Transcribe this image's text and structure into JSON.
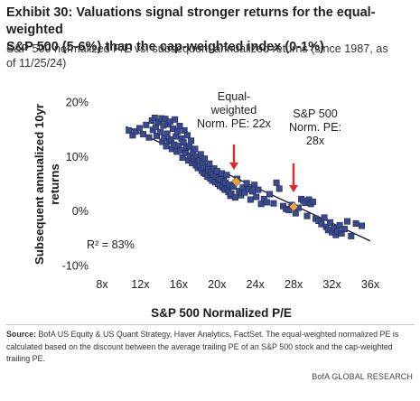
{
  "header": {
    "title_line1": "Exhibit 30: Valuations signal stronger returns for the equal-weighted",
    "title_line2": "S&P 500 (5-6%) than the cap-weighted index (0-1%)",
    "subtitle_line1": "S&P 500 normalized P/E vs. subsequent annualized returns (since 1987, as",
    "subtitle_line2": "of 11/25/24)"
  },
  "footer": {
    "source_label": "Source:",
    "source_text": " BofA US Equity & US Quant Strategy, Haver Analytics, FactSet. The equal-weighted normalized PE is calculated based on the discount between the average trailing PE of an S&P 500 stock and the cap-weighted trailing PE.",
    "brand": "BofA GLOBAL RESEARCH"
  },
  "colors": {
    "marker": "#3a4a8a",
    "marker_edge": "#1f2a5c",
    "trendline": "#000000",
    "annotation_arrow": "#e8242b",
    "highlight_marker": "#f2a531"
  },
  "chart_data": {
    "type": "scatter",
    "xlabel": "S&P 500 Normalized P/E",
    "ylabel": "Subsequent annualized 10yr returns",
    "x_tick_labels": [
      "8x",
      "12x",
      "16x",
      "20x",
      "24x",
      "28x",
      "32x",
      "36x"
    ],
    "x_ticks": [
      8,
      12,
      16,
      20,
      24,
      28,
      32,
      36
    ],
    "y_tick_labels": [
      "20%",
      "10%",
      "0%",
      "-10%"
    ],
    "y_ticks": [
      20,
      10,
      0,
      -10
    ],
    "xlim": [
      8,
      36
    ],
    "ylim": [
      -10,
      20
    ],
    "grid": false,
    "trendline": {
      "x": [
        10.5,
        36
      ],
      "y": [
        15.5,
        -5.5
      ]
    },
    "r_squared_label": "R² = 83%",
    "annotations": [
      {
        "label_lines": [
          "Equal-",
          "weighted",
          "Norm. PE: 22x"
        ],
        "x": 22,
        "y": 5.4
      },
      {
        "label_lines": [
          "S&P 500",
          "Norm. PE:",
          "28x"
        ],
        "x": 28,
        "y": 0.8
      }
    ],
    "points": [
      [
        10.8,
        14.8
      ],
      [
        11.2,
        13.9
      ],
      [
        11.5,
        14.6
      ],
      [
        11.9,
        15.2
      ],
      [
        12.3,
        14.1
      ],
      [
        12.6,
        15.8
      ],
      [
        12.9,
        13.5
      ],
      [
        13.2,
        16.6
      ],
      [
        13.3,
        14.9
      ],
      [
        13.5,
        17.1
      ],
      [
        13.6,
        15.4
      ],
      [
        13.7,
        13.8
      ],
      [
        13.9,
        16.3
      ],
      [
        14.1,
        14.5
      ],
      [
        14.2,
        17.0
      ],
      [
        14.3,
        12.7
      ],
      [
        14.4,
        15.7
      ],
      [
        14.5,
        13.4
      ],
      [
        14.6,
        16.9
      ],
      [
        14.7,
        11.9
      ],
      [
        14.8,
        14.2
      ],
      [
        14.9,
        15.9
      ],
      [
        15.0,
        12.8
      ],
      [
        15.1,
        16.4
      ],
      [
        15.2,
        13.1
      ],
      [
        15.3,
        11.4
      ],
      [
        15.4,
        15.1
      ],
      [
        15.5,
        12.2
      ],
      [
        15.6,
        16.8
      ],
      [
        15.7,
        13.7
      ],
      [
        15.8,
        10.9
      ],
      [
        15.9,
        14.6
      ],
      [
        16.0,
        12.0
      ],
      [
        16.1,
        15.6
      ],
      [
        16.2,
        11.1
      ],
      [
        16.3,
        13.3
      ],
      [
        16.4,
        9.8
      ],
      [
        16.5,
        12.6
      ],
      [
        16.6,
        14.8
      ],
      [
        16.7,
        10.6
      ],
      [
        16.8,
        11.7
      ],
      [
        16.9,
        13.9
      ],
      [
        17.0,
        9.3
      ],
      [
        17.1,
        11.9
      ],
      [
        17.2,
        10.2
      ],
      [
        17.3,
        12.9
      ],
      [
        17.4,
        8.8
      ],
      [
        17.5,
        10.9
      ],
      [
        17.6,
        9.6
      ],
      [
        17.7,
        11.4
      ],
      [
        17.8,
        8.4
      ],
      [
        17.9,
        10.0
      ],
      [
        18.0,
        7.9
      ],
      [
        18.1,
        9.2
      ],
      [
        18.2,
        8.3
      ],
      [
        18.3,
        10.4
      ],
      [
        18.4,
        7.4
      ],
      [
        18.5,
        8.8
      ],
      [
        18.6,
        7.0
      ],
      [
        18.7,
        9.6
      ],
      [
        18.8,
        6.8
      ],
      [
        18.9,
        8.1
      ],
      [
        19.0,
        6.3
      ],
      [
        19.1,
        7.6
      ],
      [
        19.2,
        8.7
      ],
      [
        19.3,
        6.0
      ],
      [
        19.4,
        7.2
      ],
      [
        19.5,
        5.6
      ],
      [
        19.6,
        6.7
      ],
      [
        19.7,
        7.8
      ],
      [
        19.8,
        5.3
      ],
      [
        19.9,
        6.4
      ],
      [
        20.0,
        7.3
      ],
      [
        20.1,
        5.0
      ],
      [
        20.2,
        6.1
      ],
      [
        20.3,
        4.6
      ],
      [
        20.4,
        5.8
      ],
      [
        20.5,
        6.9
      ],
      [
        20.6,
        4.3
      ],
      [
        20.7,
        5.5
      ],
      [
        20.8,
        3.9
      ],
      [
        20.9,
        5.2
      ],
      [
        21.0,
        6.6
      ],
      [
        21.1,
        4.1
      ],
      [
        21.2,
        3.5
      ],
      [
        21.3,
        4.8
      ],
      [
        21.4,
        2.8
      ],
      [
        21.5,
        3.2
      ],
      [
        21.7,
        4.5
      ],
      [
        21.9,
        2.5
      ],
      [
        22.1,
        5.9
      ],
      [
        22.3,
        3.7
      ],
      [
        22.5,
        2.9
      ],
      [
        22.7,
        4.3
      ],
      [
        22.9,
        3.4
      ],
      [
        23.1,
        5.1
      ],
      [
        23.3,
        4.0
      ],
      [
        23.5,
        2.1
      ],
      [
        23.7,
        3.6
      ],
      [
        23.9,
        4.8
      ],
      [
        24.1,
        2.6
      ],
      [
        24.3,
        3.9
      ],
      [
        24.6,
        1.3
      ],
      [
        24.9,
        2.2
      ],
      [
        25.2,
        1.6
      ],
      [
        25.5,
        3.1
      ],
      [
        25.9,
        1.4
      ],
      [
        26.2,
        5.2
      ],
      [
        26.5,
        4.1
      ],
      [
        26.9,
        0.9
      ],
      [
        27.2,
        0.4
      ],
      [
        27.5,
        0.2
      ],
      [
        27.8,
        1.1
      ],
      [
        28.2,
        -0.4
      ],
      [
        28.5,
        0.6
      ],
      [
        28.8,
        2.2
      ],
      [
        29.0,
        1.9
      ],
      [
        29.2,
        1.5
      ],
      [
        29.4,
        -0.9
      ],
      [
        29.6,
        2.1
      ],
      [
        29.8,
        1.3
      ],
      [
        30.0,
        1.7
      ],
      [
        30.3,
        -1.4
      ],
      [
        30.6,
        -1.8
      ],
      [
        30.9,
        -2.4
      ],
      [
        31.2,
        -1.2
      ],
      [
        31.4,
        -2.9
      ],
      [
        31.6,
        -3.5
      ],
      [
        31.8,
        -2.1
      ],
      [
        32.0,
        -3.9
      ],
      [
        32.2,
        -3.1
      ],
      [
        32.4,
        -4.4
      ],
      [
        32.6,
        -3.7
      ],
      [
        32.8,
        -2.6
      ],
      [
        33.0,
        -4.1
      ],
      [
        33.3,
        -3.3
      ],
      [
        33.6,
        -1.9
      ],
      [
        34.0,
        -4.6
      ],
      [
        34.5,
        -2.3
      ],
      [
        35.1,
        -2.7
      ]
    ]
  }
}
